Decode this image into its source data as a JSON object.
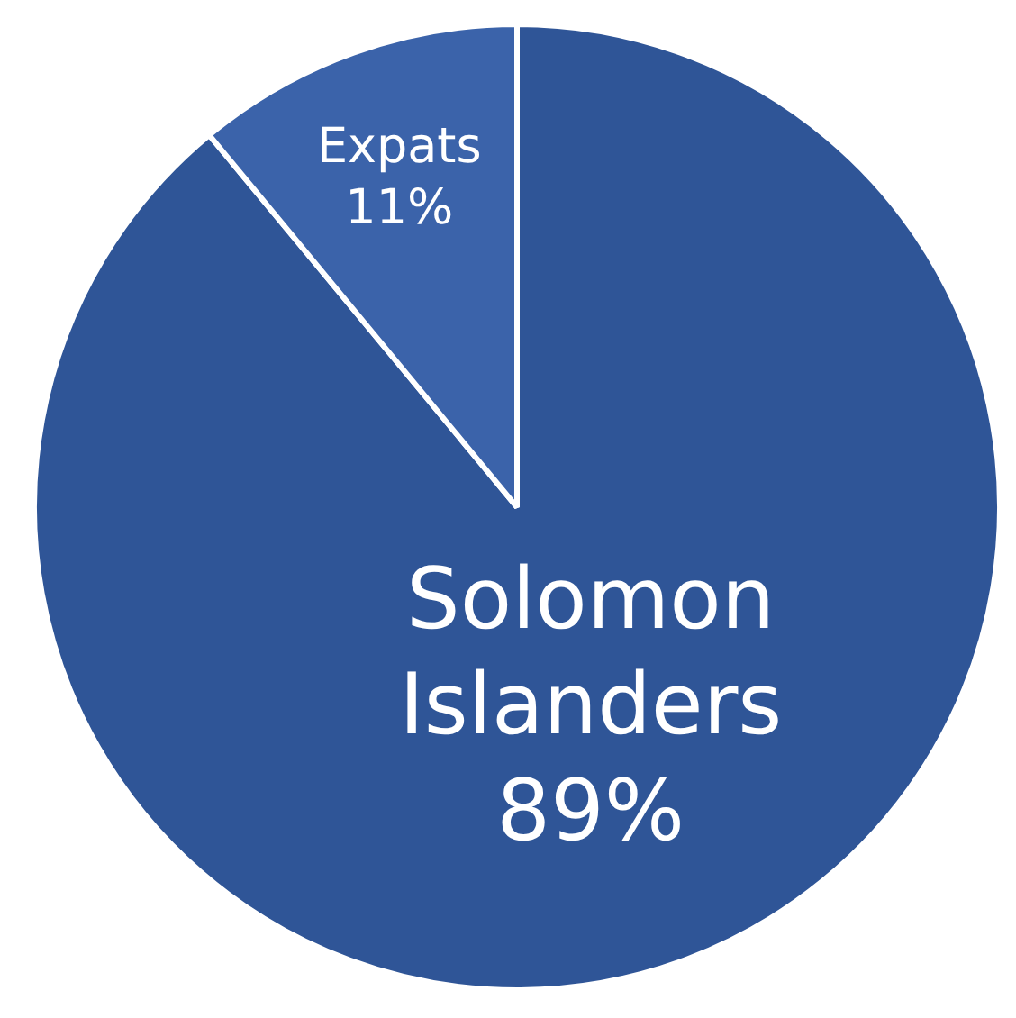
{
  "chart_data": {
    "type": "pie",
    "categories": [
      "Solomon Islanders",
      "Expats"
    ],
    "values": [
      89,
      11
    ],
    "colors": [
      "#2f5597",
      "#3b63aa"
    ],
    "data_labels": true,
    "value_labels": [
      "89%",
      "11%"
    ],
    "legend": false
  }
}
